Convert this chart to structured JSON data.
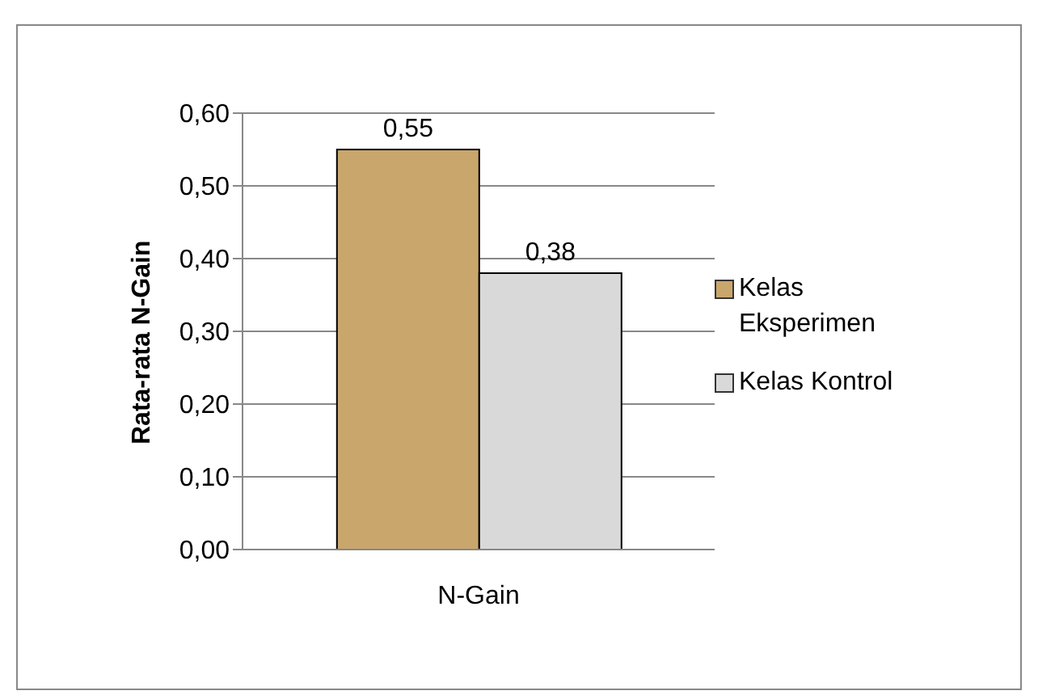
{
  "chart_data": {
    "type": "bar",
    "categories": [
      "N-Gain"
    ],
    "ylabel": "Rata-rata N-Gain",
    "series": [
      {
        "name": "Kelas Eksperimen",
        "color": "#c9a66b",
        "values": [
          0.55
        ],
        "value_labels": [
          "0,55"
        ]
      },
      {
        "name": "Kelas Kontrol",
        "color": "#d9d9d9",
        "values": [
          0.38
        ],
        "value_labels": [
          "0,38"
        ]
      }
    ],
    "ylim": [
      0,
      0.6
    ],
    "yticks": [
      {
        "value": 0,
        "label": "0,00"
      },
      {
        "value": 0.1,
        "label": "0,10"
      },
      {
        "value": 0.2,
        "label": "0,20"
      },
      {
        "value": 0.3,
        "label": "0,30"
      },
      {
        "value": 0.4,
        "label": "0,40"
      },
      {
        "value": 0.5,
        "label": "0,50"
      },
      {
        "value": 0.6,
        "label": "0,60"
      }
    ],
    "grid": "y",
    "legend": "right"
  }
}
